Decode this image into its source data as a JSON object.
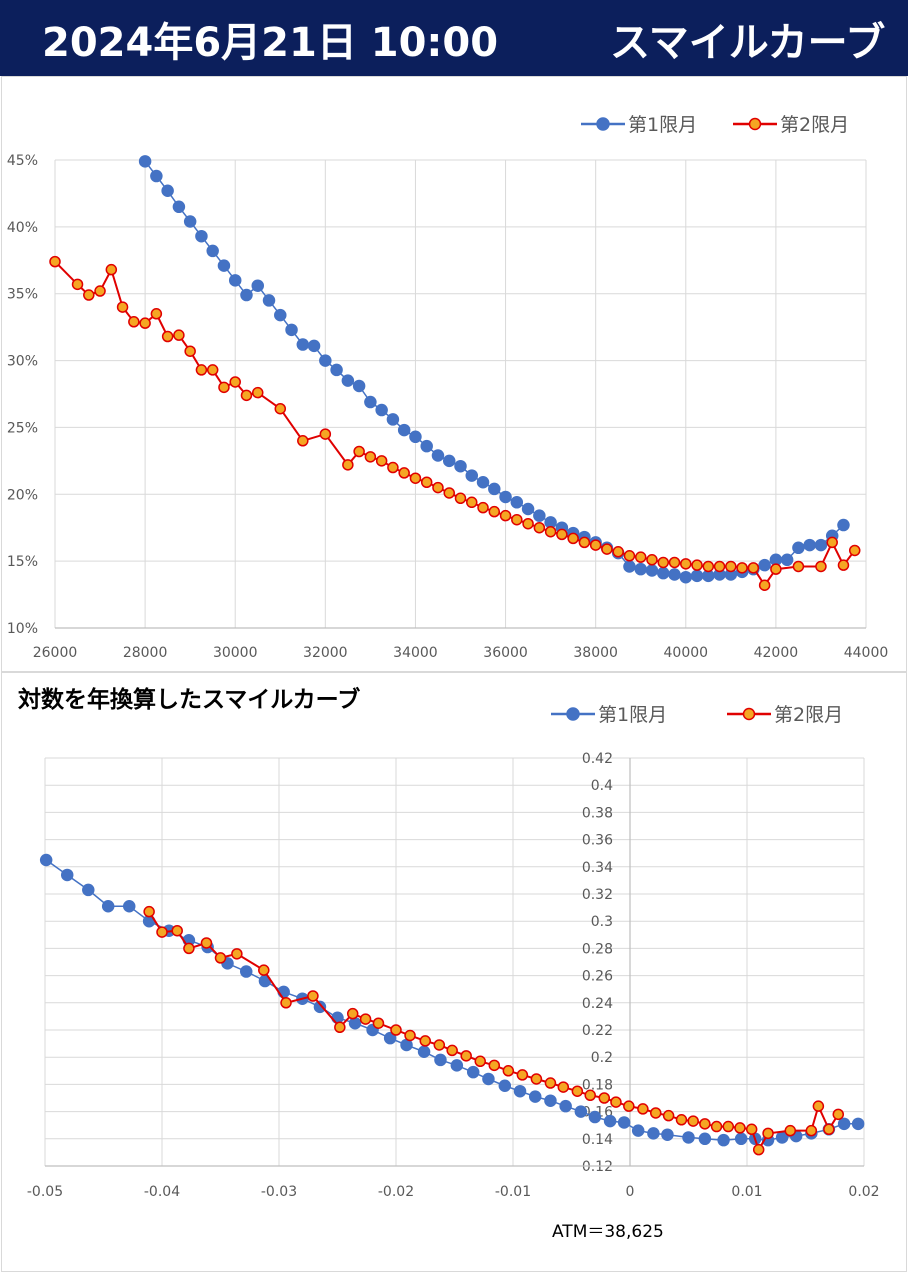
{
  "header": {
    "date": "2024年6月21日 10:00",
    "title": "スマイルカーブ"
  },
  "colors": {
    "header_bg": "#0c1f5c",
    "series1": "#4472c4",
    "series2": "#e00000",
    "series2_fill": "#f5a623",
    "grid": "#d9d9d9"
  },
  "chart_data": [
    {
      "type": "line",
      "title": "",
      "xlabel": "",
      "ylabel": "",
      "xlim": [
        26000,
        44000
      ],
      "ylim": [
        0.1,
        0.45
      ],
      "x_ticks": [
        "26000",
        "28000",
        "30000",
        "32000",
        "34000",
        "36000",
        "38000",
        "40000",
        "42000",
        "44000"
      ],
      "y_ticks": [
        "10%",
        "15%",
        "20%",
        "25%",
        "30%",
        "35%",
        "40%",
        "45%"
      ],
      "grid": true,
      "legend": "top-right",
      "series": [
        {
          "name": "第1限月",
          "points": [
            [
              28000,
              0.449
            ],
            [
              28250,
              0.438
            ],
            [
              28500,
              0.427
            ],
            [
              28750,
              0.415
            ],
            [
              29000,
              0.404
            ],
            [
              29250,
              0.393
            ],
            [
              29500,
              0.382
            ],
            [
              29750,
              0.371
            ],
            [
              30000,
              0.36
            ],
            [
              30250,
              0.349
            ],
            [
              30500,
              0.356
            ],
            [
              30750,
              0.345
            ],
            [
              31000,
              0.334
            ],
            [
              31250,
              0.323
            ],
            [
              31500,
              0.312
            ],
            [
              31750,
              0.311
            ],
            [
              32000,
              0.3
            ],
            [
              32250,
              0.293
            ],
            [
              32500,
              0.285
            ],
            [
              32750,
              0.281
            ],
            [
              33000,
              0.269
            ],
            [
              33250,
              0.263
            ],
            [
              33500,
              0.256
            ],
            [
              33750,
              0.248
            ],
            [
              34000,
              0.243
            ],
            [
              34250,
              0.236
            ],
            [
              34500,
              0.229
            ],
            [
              34750,
              0.225
            ],
            [
              35000,
              0.221
            ],
            [
              35250,
              0.214
            ],
            [
              35500,
              0.209
            ],
            [
              35750,
              0.204
            ],
            [
              36000,
              0.198
            ],
            [
              36250,
              0.194
            ],
            [
              36500,
              0.189
            ],
            [
              36750,
              0.184
            ],
            [
              37000,
              0.179
            ],
            [
              37250,
              0.175
            ],
            [
              37500,
              0.171
            ],
            [
              37750,
              0.168
            ],
            [
              38000,
              0.164
            ],
            [
              38250,
              0.16
            ],
            [
              38500,
              0.156
            ],
            [
              38750,
              0.146
            ],
            [
              39000,
              0.144
            ],
            [
              39250,
              0.143
            ],
            [
              39500,
              0.141
            ],
            [
              39750,
              0.14
            ],
            [
              40000,
              0.138
            ],
            [
              40250,
              0.139
            ],
            [
              40500,
              0.139
            ],
            [
              40750,
              0.14
            ],
            [
              41000,
              0.14
            ],
            [
              41250,
              0.142
            ],
            [
              41500,
              0.144
            ],
            [
              41750,
              0.147
            ],
            [
              42000,
              0.151
            ],
            [
              42250,
              0.151
            ],
            [
              42500,
              0.16
            ],
            [
              42750,
              0.162
            ],
            [
              43000,
              0.162
            ],
            [
              43250,
              0.169
            ],
            [
              43500,
              0.177
            ]
          ]
        },
        {
          "name": "第2限月",
          "points": [
            [
              26000,
              0.374
            ],
            [
              26500,
              0.357
            ],
            [
              26750,
              0.349
            ],
            [
              27000,
              0.352
            ],
            [
              27250,
              0.368
            ],
            [
              27500,
              0.34
            ],
            [
              27750,
              0.329
            ],
            [
              28000,
              0.328
            ],
            [
              28250,
              0.335
            ],
            [
              28500,
              0.318
            ],
            [
              28750,
              0.319
            ],
            [
              29000,
              0.307
            ],
            [
              29250,
              0.293
            ],
            [
              29500,
              0.293
            ],
            [
              29750,
              0.28
            ],
            [
              30000,
              0.284
            ],
            [
              30250,
              0.274
            ],
            [
              30500,
              0.276
            ],
            [
              31000,
              0.264
            ],
            [
              31500,
              0.24
            ],
            [
              32000,
              0.245
            ],
            [
              32500,
              0.222
            ],
            [
              32750,
              0.232
            ],
            [
              33000,
              0.228
            ],
            [
              33250,
              0.225
            ],
            [
              33500,
              0.22
            ],
            [
              33750,
              0.216
            ],
            [
              34000,
              0.212
            ],
            [
              34250,
              0.209
            ],
            [
              34500,
              0.205
            ],
            [
              34750,
              0.201
            ],
            [
              35000,
              0.197
            ],
            [
              35250,
              0.194
            ],
            [
              35500,
              0.19
            ],
            [
              35750,
              0.187
            ],
            [
              36000,
              0.184
            ],
            [
              36250,
              0.181
            ],
            [
              36500,
              0.178
            ],
            [
              36750,
              0.175
            ],
            [
              37000,
              0.172
            ],
            [
              37250,
              0.17
            ],
            [
              37500,
              0.167
            ],
            [
              37750,
              0.164
            ],
            [
              38000,
              0.162
            ],
            [
              38250,
              0.159
            ],
            [
              38500,
              0.157
            ],
            [
              38750,
              0.154
            ],
            [
              39000,
              0.153
            ],
            [
              39250,
              0.151
            ],
            [
              39500,
              0.149
            ],
            [
              39750,
              0.149
            ],
            [
              40000,
              0.148
            ],
            [
              40250,
              0.147
            ],
            [
              40500,
              0.146
            ],
            [
              40750,
              0.146
            ],
            [
              41000,
              0.146
            ],
            [
              41250,
              0.145
            ],
            [
              41500,
              0.145
            ],
            [
              41750,
              0.132
            ],
            [
              42000,
              0.144
            ],
            [
              42500,
              0.146
            ],
            [
              43000,
              0.146
            ],
            [
              43250,
              0.164
            ],
            [
              43500,
              0.147
            ],
            [
              43750,
              0.158
            ]
          ]
        }
      ]
    },
    {
      "type": "line",
      "title": "対数を年換算したスマイルカーブ",
      "xlabel": "",
      "ylabel": "",
      "xlim": [
        -0.05,
        0.02
      ],
      "ylim": [
        0.12,
        0.42
      ],
      "x_ticks": [
        "-0.05",
        "-0.04",
        "-0.03",
        "-0.02",
        "-0.01",
        "0",
        "0.01",
        "0.02"
      ],
      "y_ticks": [
        "0.12",
        "0.14",
        "0.16",
        "0.18",
        "0.2",
        "0.22",
        "0.24",
        "0.26",
        "0.28",
        "0.3",
        "0.32",
        "0.34",
        "0.36",
        "0.38",
        "0.4",
        "0.42"
      ],
      "grid": true,
      "legend": "top-right",
      "annotation": "ATM＝38,625",
      "series": [
        {
          "name": "第1限月",
          "points": [
            [
              -0.0499,
              0.345
            ],
            [
              -0.0481,
              0.334
            ],
            [
              -0.0463,
              0.323
            ],
            [
              -0.0446,
              0.311
            ],
            [
              -0.0428,
              0.311
            ],
            [
              -0.0411,
              0.3
            ],
            [
              -0.0394,
              0.293
            ],
            [
              -0.0377,
              0.286
            ],
            [
              -0.0361,
              0.281
            ],
            [
              -0.0344,
              0.269
            ],
            [
              -0.0328,
              0.263
            ],
            [
              -0.0312,
              0.256
            ],
            [
              -0.0296,
              0.248
            ],
            [
              -0.028,
              0.243
            ],
            [
              -0.0265,
              0.237
            ],
            [
              -0.025,
              0.229
            ],
            [
              -0.0235,
              0.225
            ],
            [
              -0.022,
              0.22
            ],
            [
              -0.0205,
              0.214
            ],
            [
              -0.0191,
              0.209
            ],
            [
              -0.0176,
              0.204
            ],
            [
              -0.0162,
              0.198
            ],
            [
              -0.0148,
              0.194
            ],
            [
              -0.0134,
              0.189
            ],
            [
              -0.0121,
              0.184
            ],
            [
              -0.0107,
              0.179
            ],
            [
              -0.0094,
              0.175
            ],
            [
              -0.0081,
              0.171
            ],
            [
              -0.0068,
              0.168
            ],
            [
              -0.0055,
              0.164
            ],
            [
              -0.0042,
              0.16
            ],
            [
              -0.003,
              0.156
            ],
            [
              -0.0017,
              0.153
            ],
            [
              -0.0005,
              0.152
            ],
            [
              0.0007,
              0.146
            ],
            [
              0.002,
              0.144
            ],
            [
              0.0032,
              0.143
            ],
            [
              0.005,
              0.141
            ],
            [
              0.0064,
              0.14
            ],
            [
              0.008,
              0.139
            ],
            [
              0.0095,
              0.14
            ],
            [
              0.0107,
              0.14
            ],
            [
              0.0118,
              0.139
            ],
            [
              0.013,
              0.141
            ],
            [
              0.0142,
              0.142
            ],
            [
              0.0155,
              0.144
            ],
            [
              0.017,
              0.147
            ],
            [
              0.0183,
              0.151
            ],
            [
              0.0195,
              0.151
            ]
          ]
        },
        {
          "name": "第2限月",
          "points": [
            [
              -0.0411,
              0.307
            ],
            [
              -0.04,
              0.292
            ],
            [
              -0.0387,
              0.293
            ],
            [
              -0.0377,
              0.28
            ],
            [
              -0.0362,
              0.284
            ],
            [
              -0.035,
              0.273
            ],
            [
              -0.0336,
              0.276
            ],
            [
              -0.0313,
              0.264
            ],
            [
              -0.0294,
              0.24
            ],
            [
              -0.0271,
              0.245
            ],
            [
              -0.0248,
              0.222
            ],
            [
              -0.0237,
              0.232
            ],
            [
              -0.0226,
              0.228
            ],
            [
              -0.0215,
              0.225
            ],
            [
              -0.02,
              0.22
            ],
            [
              -0.0188,
              0.216
            ],
            [
              -0.0175,
              0.212
            ],
            [
              -0.0163,
              0.209
            ],
            [
              -0.0152,
              0.205
            ],
            [
              -0.014,
              0.201
            ],
            [
              -0.0128,
              0.197
            ],
            [
              -0.0116,
              0.194
            ],
            [
              -0.0104,
              0.19
            ],
            [
              -0.0092,
              0.187
            ],
            [
              -0.008,
              0.184
            ],
            [
              -0.0068,
              0.181
            ],
            [
              -0.0057,
              0.178
            ],
            [
              -0.0045,
              0.175
            ],
            [
              -0.0034,
              0.172
            ],
            [
              -0.0022,
              0.17
            ],
            [
              -0.0012,
              0.167
            ],
            [
              -0.0001,
              0.164
            ],
            [
              0.0011,
              0.162
            ],
            [
              0.0022,
              0.159
            ],
            [
              0.0033,
              0.157
            ],
            [
              0.0044,
              0.154
            ],
            [
              0.0054,
              0.153
            ],
            [
              0.0064,
              0.151
            ],
            [
              0.0074,
              0.149
            ],
            [
              0.0084,
              0.149
            ],
            [
              0.0094,
              0.148
            ],
            [
              0.0104,
              0.147
            ],
            [
              0.011,
              0.132
            ],
            [
              0.0118,
              0.144
            ],
            [
              0.0137,
              0.146
            ],
            [
              0.0155,
              0.146
            ],
            [
              0.0161,
              0.164
            ],
            [
              0.017,
              0.147
            ],
            [
              0.0178,
              0.158
            ]
          ]
        }
      ]
    }
  ]
}
